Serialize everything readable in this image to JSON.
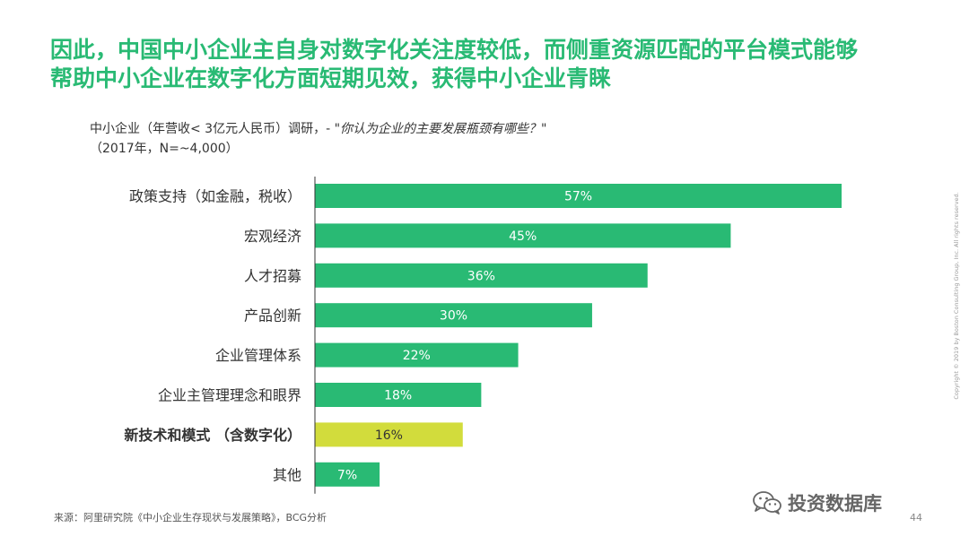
{
  "title": {
    "line1": "因此，中国中小企业主自身对数字化关注度较低，而侧重资源匹配的平台模式能够",
    "line2": "帮助中小企业在数字化方面短期见效，获得中小企业青睐"
  },
  "subtitle": {
    "prefix": "中小企业（年营收< 3亿元人民币）调研，- ",
    "question": "\"你认为企业的主要发展瓶颈有哪些？\"",
    "sample": "（2017年，N=~4,000）"
  },
  "chart_data": {
    "type": "bar",
    "orientation": "horizontal",
    "categories": [
      "政策支持（如金融，税收）",
      "宏观经济",
      "人才招募",
      "产品创新",
      "企业管理体系",
      "企业主管理理念和眼界",
      "新技术和模式 （含数字化）",
      "其他"
    ],
    "values": [
      57,
      45,
      36,
      30,
      22,
      18,
      16,
      7
    ],
    "value_labels": [
      "57%",
      "45%",
      "36%",
      "30%",
      "22%",
      "18%",
      "16%",
      "7%"
    ],
    "highlight_index": 6,
    "xlim": [
      0,
      57
    ],
    "unit": "%"
  },
  "colors": {
    "accent": "#29BA74",
    "bar": "#29BA74",
    "highlight": "#D2DC3C",
    "axis": "#333333"
  },
  "footer": {
    "source": "来源：阿里研究院《中小企业生存现状与发展策略》，BCG分析",
    "page": "44",
    "copyright": "Copyright © 2019 by Boston Consulting Group, Inc. All rights reserved.",
    "watermark": "投资数据库",
    "watermark_icon": "wechat-icon"
  }
}
